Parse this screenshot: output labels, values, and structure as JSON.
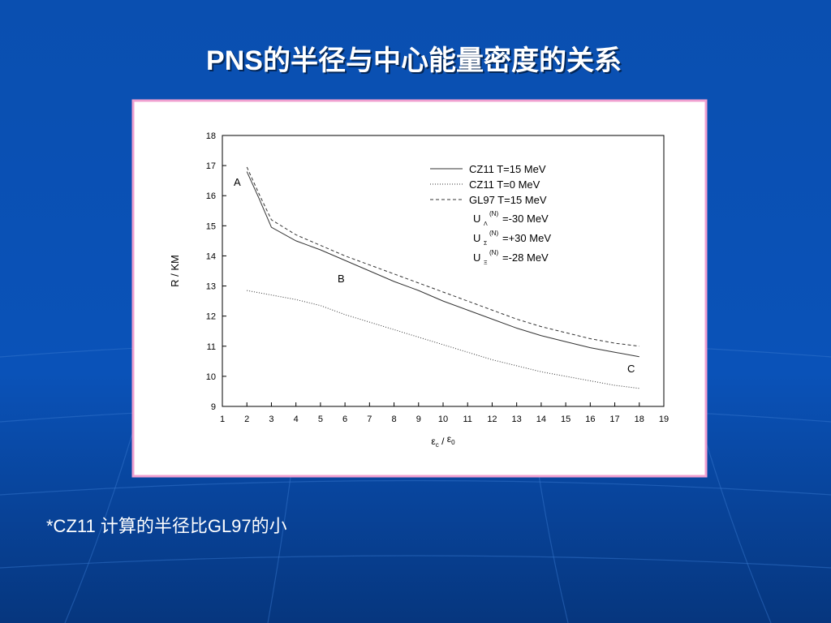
{
  "slide_title": "PNS的半径与中心能量密度的关系",
  "footnote": "*CZ11 计算的半径比GL97的小",
  "chart_data": {
    "type": "line",
    "y_label": "R / KM",
    "x_label": {
      "num": "ε",
      "num_sub": "c",
      "sep": " / ",
      "den": "ε",
      "den_sub": "0"
    },
    "xlim": [
      1,
      19
    ],
    "xticks": [
      1,
      2,
      3,
      4,
      5,
      6,
      7,
      8,
      9,
      10,
      11,
      12,
      13,
      14,
      15,
      16,
      17,
      18,
      19
    ],
    "ylim": [
      9,
      18
    ],
    "yticks": [
      9,
      10,
      11,
      12,
      13,
      14,
      15,
      16,
      17,
      18
    ],
    "series": [
      {
        "name": "CZ11 T=15 MeV",
        "color": "#333333",
        "dash": "solid",
        "x": [
          2,
          2.5,
          3,
          4,
          5,
          6,
          7,
          8,
          9,
          10,
          11,
          12,
          13,
          14,
          15,
          16,
          17,
          18
        ],
        "values": [
          16.8,
          15.9,
          14.95,
          14.5,
          14.2,
          13.85,
          13.5,
          13.15,
          12.85,
          12.5,
          12.2,
          11.9,
          11.6,
          11.35,
          11.15,
          10.95,
          10.8,
          10.65
        ]
      },
      {
        "name": "CZ11 T=0 MeV",
        "color": "#333333",
        "dash": "dotted",
        "x": [
          2,
          3,
          4,
          5,
          6,
          7,
          8,
          9,
          10,
          11,
          12,
          13,
          14,
          15,
          16,
          17,
          18
        ],
        "values": [
          12.85,
          12.7,
          12.55,
          12.35,
          12.05,
          11.8,
          11.55,
          11.3,
          11.05,
          10.8,
          10.55,
          10.35,
          10.15,
          10.0,
          9.85,
          9.7,
          9.6
        ]
      },
      {
        "name": "GL97 T=15 MeV",
        "color": "#333333",
        "dash": "dashed",
        "x": [
          2,
          2.5,
          3,
          4,
          5,
          6,
          7,
          8,
          9,
          10,
          11,
          12,
          13,
          14,
          15,
          16,
          17,
          18
        ],
        "values": [
          16.95,
          16.05,
          15.2,
          14.7,
          14.35,
          14.0,
          13.7,
          13.4,
          13.1,
          12.8,
          12.5,
          12.2,
          11.9,
          11.65,
          11.45,
          11.25,
          11.1,
          11.0
        ]
      }
    ],
    "parameters": [
      {
        "base": "U",
        "sub": "Λ",
        "sup": "(N)",
        "text": "=-30 MeV"
      },
      {
        "base": "U",
        "sub": "Σ",
        "sup": "(N)",
        "text": "=+30 MeV"
      },
      {
        "base": "U",
        "sub": "Ξ",
        "sup": "(N)",
        "text": "=-28 MeV"
      }
    ],
    "annotations": [
      "A",
      "B",
      "C"
    ]
  }
}
